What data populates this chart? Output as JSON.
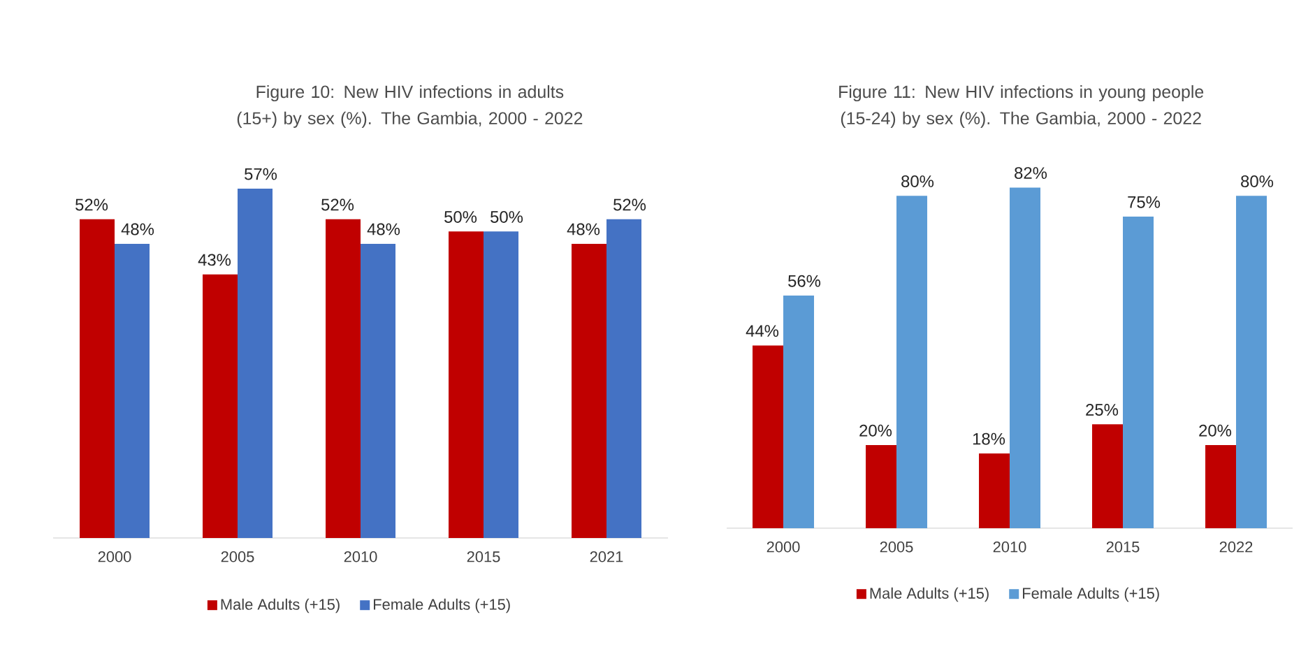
{
  "chart_data": [
    {
      "type": "bar",
      "title": "Figure 10: New HIV infections in adults (15+) by sex (%). The Gambia, 2000 - 2022",
      "categories": [
        "2000",
        "2005",
        "2010",
        "2015",
        "2021"
      ],
      "series": [
        {
          "name": "Male Adults (+15)",
          "color": "#c00000",
          "values": [
            52,
            43,
            52,
            50,
            48
          ],
          "value_labels": [
            "52%",
            "43%",
            "52%",
            "50%",
            "48%"
          ]
        },
        {
          "name": "Female Adults (+15)",
          "color": "#4472c4",
          "values": [
            48,
            57,
            48,
            50,
            52
          ],
          "value_labels": [
            "48%",
            "57%",
            "48%",
            "50%",
            "52%"
          ]
        }
      ],
      "legend": "bottom"
    },
    {
      "type": "bar",
      "title": "Figure 11: New HIV infections in young people (15-24) by sex (%). The Gambia, 2000 - 2022",
      "categories": [
        "2000",
        "2005",
        "2010",
        "2015",
        "2022"
      ],
      "series": [
        {
          "name": "Male Adults (+15)",
          "color": "#c00000",
          "values": [
            44,
            20,
            18,
            25,
            20
          ],
          "value_labels": [
            "44%",
            "20%",
            "18%",
            "25%",
            "20%"
          ]
        },
        {
          "name": "Female Adults (+15)",
          "color": "#5b9bd5",
          "values": [
            56,
            80,
            82,
            75,
            80
          ],
          "value_labels": [
            "56%",
            "80%",
            "82%",
            "75%",
            "80%"
          ]
        }
      ],
      "legend": "bottom"
    }
  ]
}
